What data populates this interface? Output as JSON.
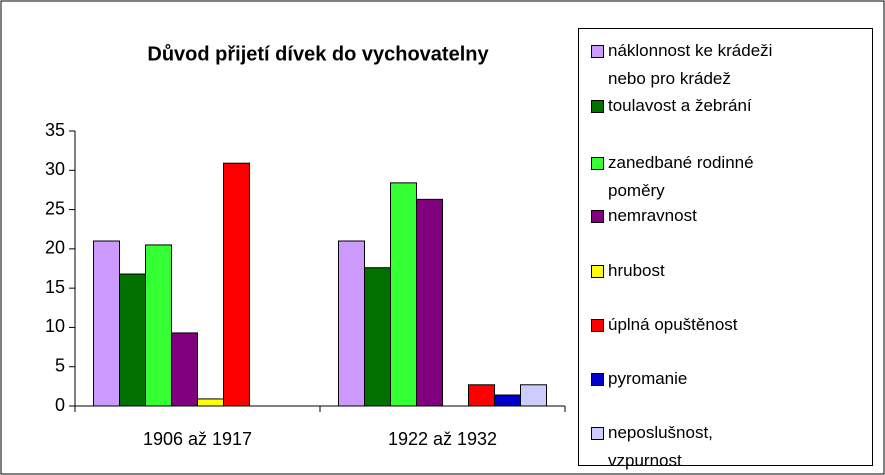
{
  "chart_data": {
    "type": "bar",
    "title": "Důvod přijetí dívek do vychovatelny",
    "categories": [
      "1906 až 1917",
      "1922 až 1932"
    ],
    "series": [
      {
        "name": "náklonnost ke krádeži nebo pro krádež",
        "color": "#cc99ff",
        "values": [
          21,
          21
        ]
      },
      {
        "name": "toulavost a žebrání",
        "color": "#007000",
        "values": [
          16.8,
          17.6
        ]
      },
      {
        "name": "zanedbané rodinné poměry",
        "color": "#33ff33",
        "values": [
          20.5,
          28.4
        ]
      },
      {
        "name": "nemravnost",
        "color": "#800080",
        "values": [
          9.3,
          26.3
        ]
      },
      {
        "name": "hrubost",
        "color": "#ffff00",
        "values": [
          0.9,
          0
        ]
      },
      {
        "name": "úplná opuštěnost",
        "color": "#ff0000",
        "values": [
          30.9,
          2.7
        ]
      },
      {
        "name": "pyromanie",
        "color": "#0000cc",
        "values": [
          0,
          1.4
        ]
      },
      {
        "name": "neposlušnost, vzpurnost",
        "color": "#ccccff",
        "values": [
          0,
          2.7
        ]
      }
    ],
    "ylim": [
      0,
      35
    ],
    "yticks": [
      0,
      5,
      10,
      15,
      20,
      25,
      30,
      35
    ],
    "grid": false,
    "legend": "right"
  }
}
